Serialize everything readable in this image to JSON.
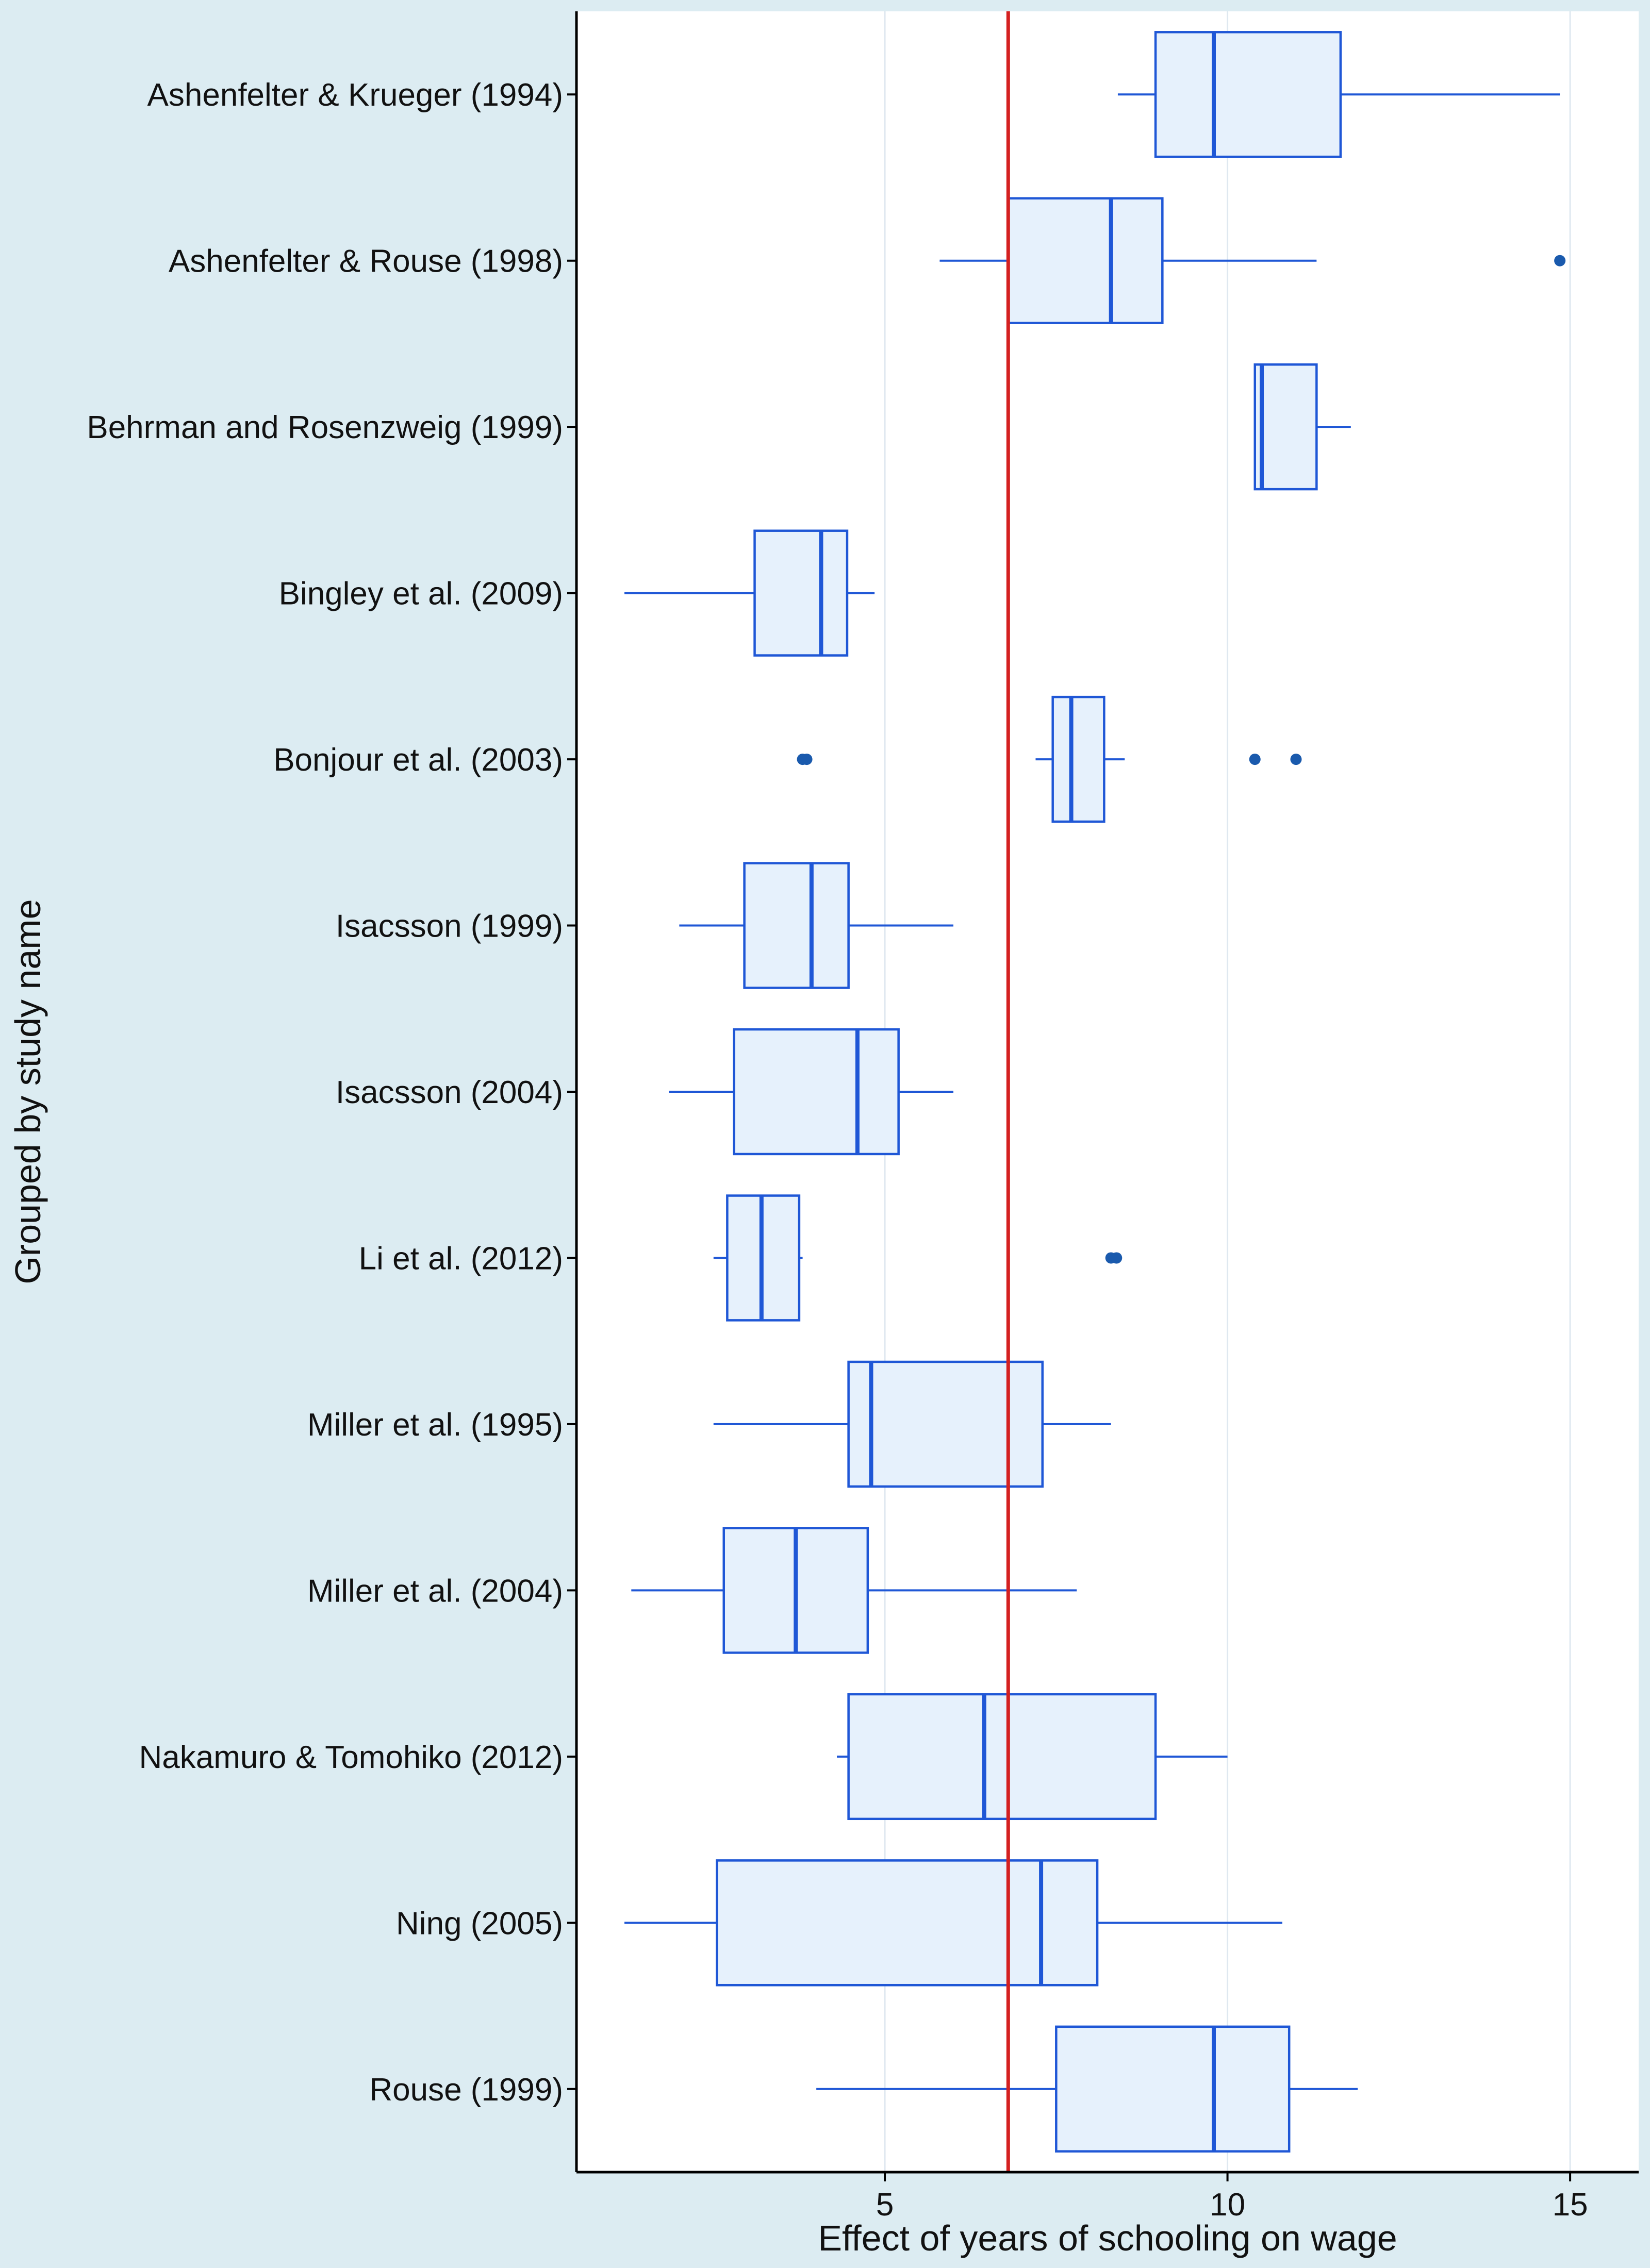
{
  "chart_data": {
    "type": "box",
    "orientation": "horizontal",
    "xlabel": "Effect of years of schooling on wage",
    "ylabel": "Grouped by study name",
    "xlim": [
      0.5,
      16.0
    ],
    "xticks": [
      5,
      10,
      15
    ],
    "grid": "vertical lines at x ticks",
    "reference_line": {
      "x": 6.8,
      "color": "#d42020"
    },
    "colors": {
      "box_fill": "#e6f1fc",
      "box_stroke": "#1f57d6",
      "outlier": "#1a5aad",
      "background": "#dcecf2"
    },
    "categories": [
      "Ashenfelter & Krueger (1994)",
      "Ashenfelter & Rouse (1998)",
      "Behrman and Rosenzweig (1999)",
      "Bingley et al. (2009)",
      "Bonjour et al. (2003)",
      "Isacsson (1999)",
      "Isacsson (2004)",
      "Li et al. (2012)",
      "Miller et al. (1995)",
      "Miller et al. (2004)",
      "Nakamuro & Tomohiko (2012)",
      "Ning (2005)",
      "Rouse (1999)"
    ],
    "boxes": [
      {
        "whisker_low": 8.4,
        "q1": 8.95,
        "median": 9.8,
        "q3": 11.65,
        "whisker_high": 14.85,
        "outliers": []
      },
      {
        "whisker_low": 5.8,
        "q1": 6.8,
        "median": 8.3,
        "q3": 9.05,
        "whisker_high": 11.3,
        "outliers": [
          14.85
        ]
      },
      {
        "whisker_low": 10.4,
        "q1": 10.4,
        "median": 10.5,
        "q3": 11.3,
        "whisker_high": 11.8,
        "outliers": []
      },
      {
        "whisker_low": 1.2,
        "q1": 3.1,
        "median": 4.07,
        "q3": 4.45,
        "whisker_high": 4.85,
        "outliers": []
      },
      {
        "whisker_low": 7.2,
        "q1": 7.45,
        "median": 7.72,
        "q3": 8.2,
        "whisker_high": 8.5,
        "outliers": [
          3.8,
          3.86,
          10.4,
          11.0
        ]
      },
      {
        "whisker_low": 2.0,
        "q1": 2.95,
        "median": 3.93,
        "q3": 4.47,
        "whisker_high": 6.0,
        "outliers": []
      },
      {
        "whisker_low": 1.85,
        "q1": 2.8,
        "median": 4.6,
        "q3": 5.2,
        "whisker_high": 6.0,
        "outliers": []
      },
      {
        "whisker_low": 2.5,
        "q1": 2.7,
        "median": 3.2,
        "q3": 3.75,
        "whisker_high": 3.8,
        "outliers": [
          8.3,
          8.38
        ]
      },
      {
        "whisker_low": 2.5,
        "q1": 4.47,
        "median": 4.8,
        "q3": 7.3,
        "whisker_high": 8.3,
        "outliers": []
      },
      {
        "whisker_low": 1.3,
        "q1": 2.65,
        "median": 3.7,
        "q3": 4.75,
        "whisker_high": 7.8,
        "outliers": []
      },
      {
        "whisker_low": 4.3,
        "q1": 4.47,
        "median": 6.45,
        "q3": 8.95,
        "whisker_high": 10.0,
        "outliers": []
      },
      {
        "whisker_low": 1.2,
        "q1": 2.55,
        "median": 7.28,
        "q3": 8.1,
        "whisker_high": 10.8,
        "outliers": []
      },
      {
        "whisker_low": 4.0,
        "q1": 7.5,
        "median": 9.8,
        "q3": 10.9,
        "whisker_high": 11.9,
        "outliers": []
      }
    ]
  }
}
